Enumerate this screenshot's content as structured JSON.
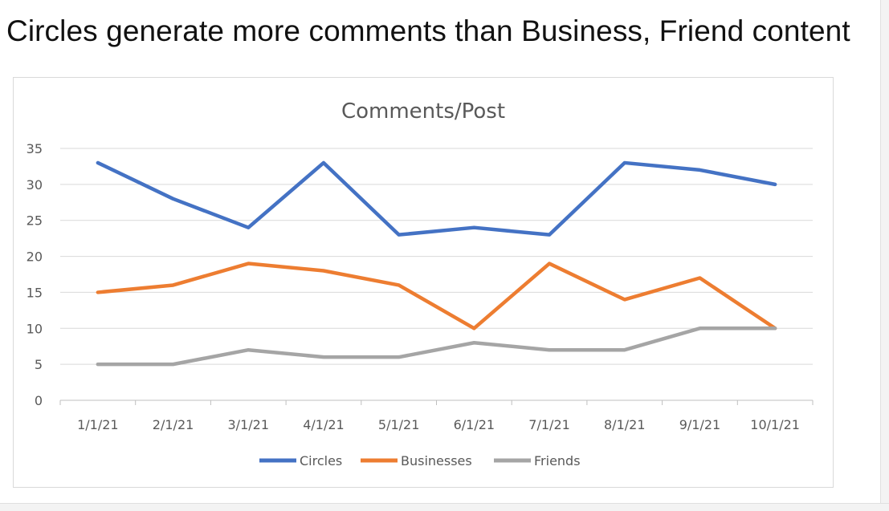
{
  "headline": "Circles generate more comments than Business, Friend content",
  "chart_data": {
    "type": "line",
    "title": "Comments/Post",
    "xlabel": "",
    "ylabel": "",
    "categories": [
      "1/1/21",
      "2/1/21",
      "3/1/21",
      "4/1/21",
      "5/1/21",
      "6/1/21",
      "7/1/21",
      "8/1/21",
      "9/1/21",
      "10/1/21"
    ],
    "ylim": [
      0,
      35
    ],
    "yticks": [
      0,
      5,
      10,
      15,
      20,
      25,
      30,
      35
    ],
    "grid": true,
    "legend_position": "bottom",
    "series": [
      {
        "name": "Circles",
        "color": "#4472C4",
        "values": [
          33,
          28,
          24,
          33,
          23,
          24,
          23,
          33,
          32,
          30
        ]
      },
      {
        "name": "Businesses",
        "color": "#ED7D31",
        "values": [
          15,
          16,
          19,
          18,
          16,
          10,
          19,
          14,
          17,
          10
        ]
      },
      {
        "name": "Friends",
        "color": "#A5A5A5",
        "values": [
          5,
          5,
          7,
          6,
          6,
          8,
          7,
          7,
          10,
          10
        ]
      }
    ]
  }
}
